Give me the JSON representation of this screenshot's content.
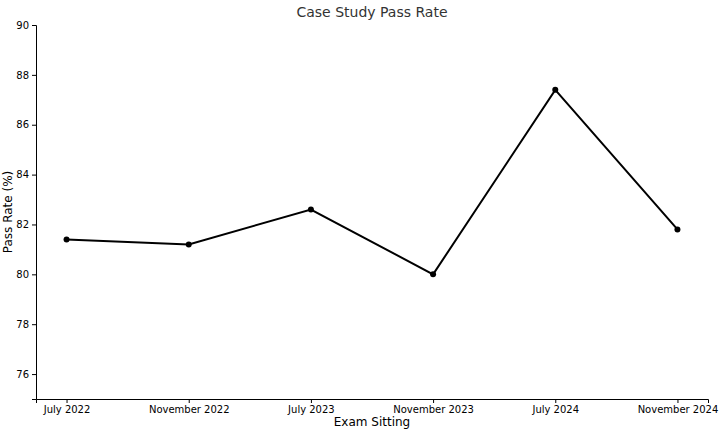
{
  "chart_data": {
    "type": "line",
    "title": "Case Study Pass Rate",
    "x_label": "Exam Sitting",
    "y_label": "Pass Rate (%)",
    "categories": [
      "July 2022",
      "November 2022",
      "July 2023",
      "November 2023",
      "July 2024",
      "November 2024"
    ],
    "values": [
      81.4,
      81.2,
      82.6,
      80.0,
      87.4,
      81.8
    ],
    "color": "#000000",
    "marker": "circle",
    "line_style": "solid",
    "ylim": [
      75,
      90
    ],
    "yticks": [
      76,
      78,
      80,
      82,
      84,
      86,
      88,
      90
    ],
    "grid": false
  }
}
